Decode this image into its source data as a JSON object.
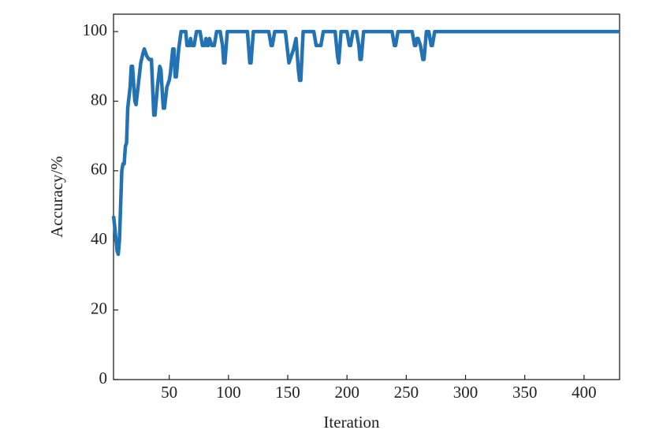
{
  "chart_data": {
    "type": "line",
    "xlabel": "Iteration",
    "ylabel": "Accuracy/%",
    "x": [
      3,
      4,
      6,
      7,
      8,
      9,
      10,
      11,
      12,
      13,
      14,
      15,
      17,
      18,
      19,
      20,
      21,
      22,
      24,
      26,
      28,
      29,
      31,
      33,
      35,
      36,
      37,
      38,
      40,
      42,
      43,
      45,
      46,
      48,
      50,
      51,
      53,
      54,
      55,
      56,
      58,
      60,
      64,
      65,
      67,
      68,
      69,
      71,
      73,
      76,
      78,
      80,
      81,
      82,
      83,
      84,
      86,
      88,
      90,
      93,
      95,
      96,
      97,
      99,
      116,
      118,
      119,
      121,
      134,
      136,
      137,
      139,
      148,
      150,
      151,
      153,
      155,
      157,
      159,
      160,
      161,
      163,
      172,
      174,
      175,
      177,
      178,
      180,
      190,
      192,
      193,
      195,
      200,
      202,
      203,
      205,
      208,
      210,
      211,
      212,
      214,
      238,
      240,
      241,
      243,
      255,
      257,
      258,
      259,
      260,
      262,
      264,
      265,
      267,
      269,
      271,
      272,
      274,
      430
    ],
    "series": [
      {
        "name": "Accuracy",
        "color": "#2272b4",
        "values": [
          47,
          44,
          37,
          36,
          40,
          50,
          60,
          62,
          62,
          67,
          68,
          78,
          84,
          90,
          90,
          85,
          80,
          79,
          85,
          91,
          94,
          95,
          93,
          92,
          92,
          84,
          76,
          76,
          84,
          90,
          89,
          78,
          78,
          84,
          86,
          88,
          95,
          95,
          87,
          87,
          95,
          100,
          100,
          96,
          96,
          98,
          96,
          96,
          100,
          100,
          96,
          96,
          98,
          96,
          96,
          98,
          96,
          96,
          100,
          100,
          96,
          91,
          91,
          100,
          100,
          91,
          91,
          100,
          100,
          96,
          96,
          100,
          100,
          94,
          91,
          93,
          95,
          98,
          89,
          86,
          86,
          100,
          100,
          96,
          96,
          96,
          96,
          100,
          100,
          93,
          91,
          100,
          100,
          96,
          96,
          100,
          100,
          96,
          92,
          92,
          100,
          100,
          96,
          96,
          100,
          100,
          96,
          96,
          98,
          98,
          96,
          92,
          92,
          100,
          100,
          96,
          96,
          100,
          100
        ]
      }
    ],
    "xlim": [
      3,
      430
    ],
    "ylim": [
      0,
      105
    ],
    "xticks": [
      50,
      100,
      150,
      200,
      250,
      300,
      350,
      400
    ],
    "yticks": [
      0,
      20,
      40,
      60,
      80,
      100
    ]
  }
}
